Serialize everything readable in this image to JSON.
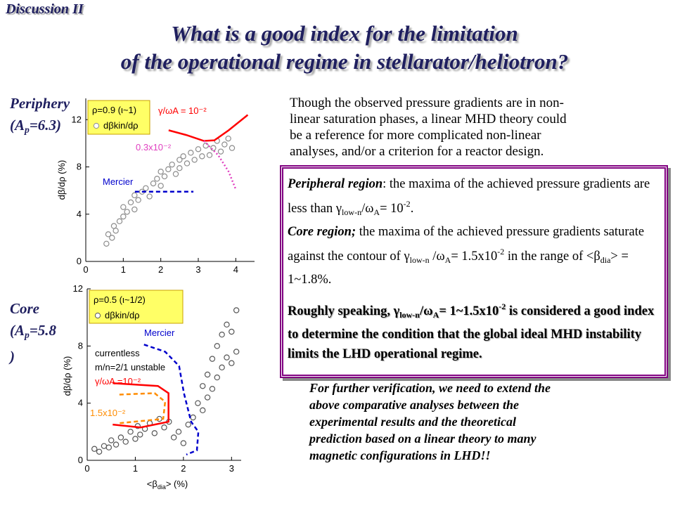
{
  "header": {
    "tag": "Discussion II",
    "title": [
      "What is a good index for the limitation",
      "of the operational regime in stellarator/heliotron?"
    ]
  },
  "left_labels": [
    {
      "name": "Periphery",
      "param": [
        "(A",
        "p",
        "=6.3)"
      ]
    },
    {
      "name": "Core",
      "param": [
        "(A",
        "p",
        "=5.8",
        ")"
      ]
    }
  ],
  "intro": [
    "Though the observed pressure gradients are in non-",
    "linear saturation phases, a linear MHD theory could",
    "be a reference for more complicated non-linear",
    "analyses, and/or a criterion for a reactor design."
  ],
  "box": {
    "p1": [
      "Peripheral region",
      ": the maxima of the achieved pressure gradients are less than ",
      "γ",
      "low-n",
      "/",
      "ω",
      "A",
      "= 10",
      "-2",
      "."
    ],
    "p2": [
      "Core region;",
      " the maxima of the achieved pressure gradients saturate against the contour of ",
      "γ",
      "low-n",
      " /",
      "ω",
      "A",
      "= 1.5x10",
      "-2",
      " in the range of <",
      "β",
      "dia",
      "> = 1~1.8%."
    ],
    "p3": [
      "Roughly speaking, γ",
      "low-n",
      "/",
      "ω",
      "A",
      "= 1~1.5x10",
      "-2",
      " is considered a good index to determine the condition that the global ideal MHD instability limits the LHD operational regime."
    ]
  },
  "conclusion": [
    "For further verification, we need to extend the",
    "above comparative analyses between the",
    "experimental results and the theoretical",
    "prediction based on a linear theory to many",
    "magnetic configurations in LHD!!"
  ],
  "chart_data": [
    {
      "type": "scatter",
      "ylabel": "dβ/dρ (%)",
      "legend_title": "ρ=0.9 (ι~1)",
      "xlim": [
        0,
        4.5
      ],
      "ylim": [
        0,
        13.8
      ],
      "xticks": [
        0,
        1,
        2,
        3,
        4
      ],
      "yticks": [
        0,
        4,
        8,
        12
      ],
      "series": [
        {
          "name": "dβkin/dρ",
          "kind": "points",
          "color": "#8c8c8c",
          "x": [
            0.55,
            0.6,
            0.7,
            0.75,
            0.8,
            0.9,
            1.0,
            1.0,
            1.1,
            1.2,
            1.3,
            1.3,
            1.4,
            1.5,
            1.6,
            1.7,
            1.8,
            1.9,
            2.0,
            2.0,
            2.1,
            2.2,
            2.3,
            2.4,
            2.5,
            2.5,
            2.6,
            2.7,
            2.8,
            2.9,
            3.0,
            3.1,
            3.2,
            3.3,
            3.4,
            3.5,
            3.6,
            3.7,
            3.8,
            3.9
          ],
          "values": [
            1.5,
            2.3,
            2.0,
            3.0,
            2.6,
            3.4,
            3.8,
            4.6,
            4.2,
            5.0,
            4.4,
            5.6,
            5.2,
            5.9,
            6.2,
            5.5,
            6.6,
            7.0,
            6.4,
            7.6,
            7.2,
            7.8,
            8.2,
            7.4,
            8.6,
            7.9,
            8.9,
            8.3,
            9.2,
            8.6,
            9.5,
            8.9,
            9.8,
            9.0,
            9.6,
            10.2,
            9.3,
            9.9,
            10.4,
            9.6
          ]
        },
        {
          "name": "γ/ωA = 10⁻²",
          "kind": "line",
          "style": "solid",
          "color": "#ff0000",
          "x": [
            2.21,
            2.68,
            3.15,
            3.43,
            3.81,
            4.32
          ],
          "values": [
            11.1,
            10.7,
            10.2,
            10.25,
            11.1,
            12.4
          ]
        },
        {
          "name": "0.3x10⁻²",
          "kind": "line",
          "style": "dotted",
          "color": "#e040c0",
          "x": [
            3.15,
            3.53,
            3.81,
            4.0
          ],
          "values": [
            10.2,
            9.0,
            7.6,
            6.1
          ]
        },
        {
          "name": "Mercier",
          "kind": "line",
          "style": "dashed",
          "color": "#0000cc",
          "x": [
            1.31,
            2.87
          ],
          "values": [
            5.9,
            5.9
          ]
        }
      ]
    },
    {
      "type": "scatter",
      "ylabel": "dβ/dρ (%)",
      "xlabel": [
        "<β",
        "dia",
        "> (%)"
      ],
      "legend_title": "ρ=0.5 (ι~1/2)",
      "annotations": [
        "currentless",
        "m/n=2/1 unstable"
      ],
      "xlim": [
        0,
        3.2
      ],
      "ylim": [
        0,
        12
      ],
      "xticks": [
        0,
        1,
        2,
        3
      ],
      "yticks": [
        0,
        4,
        8,
        12
      ],
      "series": [
        {
          "name": "dβkin/dρ",
          "kind": "points",
          "color": "#555555",
          "x": [
            0.15,
            0.25,
            0.35,
            0.45,
            0.5,
            0.6,
            0.7,
            0.8,
            0.9,
            1.0,
            1.05,
            1.1,
            1.2,
            1.3,
            1.4,
            1.5,
            1.6,
            1.7,
            1.8,
            1.9,
            2.0,
            2.1,
            2.2,
            2.3,
            2.4,
            2.4,
            2.5,
            2.5,
            2.6,
            2.6,
            2.7,
            2.7,
            2.8,
            2.8,
            2.9,
            2.9,
            3.0,
            3.0,
            3.1,
            3.1
          ],
          "values": [
            0.8,
            0.6,
            1.0,
            0.9,
            1.4,
            1.1,
            1.6,
            1.3,
            2.0,
            1.5,
            2.4,
            1.8,
            2.2,
            2.6,
            1.9,
            2.9,
            2.3,
            2.7,
            1.6,
            2.0,
            1.2,
            2.5,
            3.0,
            4.0,
            3.5,
            5.2,
            4.4,
            6.0,
            5.0,
            7.1,
            5.8,
            8.0,
            6.5,
            8.8,
            7.2,
            9.5,
            6.8,
            9.0,
            7.6,
            10.5
          ]
        },
        {
          "name": "γ/ωA =10⁻²",
          "kind": "line",
          "style": "solid",
          "color": "#ff0000",
          "x": [
            0.53,
            1.47,
            1.69,
            1.69,
            1.11,
            0.53
          ],
          "values": [
            5.4,
            5.2,
            4.7,
            2.7,
            2.3,
            2.5
          ]
        },
        {
          "name": "1.5x10⁻²",
          "kind": "line",
          "style": "dashed",
          "color": "#ff8c00",
          "x": [
            0.67,
            1.4,
            1.62,
            1.58,
            0.67
          ],
          "values": [
            4.6,
            4.7,
            4.1,
            2.9,
            2.6
          ]
        },
        {
          "name": "Mercier",
          "kind": "line",
          "style": "dashed",
          "color": "#0000cc",
          "x": [
            1.18,
            1.62,
            1.91,
            2.01,
            2.16,
            2.31,
            2.28,
            2.06
          ],
          "values": [
            8.1,
            7.6,
            6.6,
            4.7,
            2.7,
            2.0,
            0.7,
            0.4
          ]
        }
      ]
    }
  ]
}
